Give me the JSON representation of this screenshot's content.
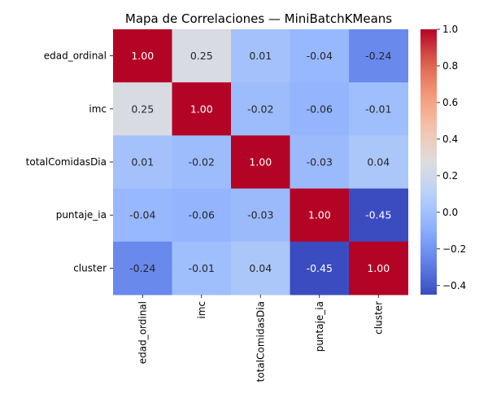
{
  "chart_data": {
    "type": "heatmap",
    "title": "Mapa de Correlaciones — MiniBatchKMeans",
    "rows": [
      "edad_ordinal",
      "imc",
      "totalComidasDia",
      "puntaje_ia",
      "cluster"
    ],
    "columns": [
      "edad_ordinal",
      "imc",
      "totalComidasDia",
      "puntaje_ia",
      "cluster"
    ],
    "values": [
      [
        1.0,
        0.25,
        0.01,
        -0.04,
        -0.24
      ],
      [
        0.25,
        1.0,
        -0.02,
        -0.06,
        -0.01
      ],
      [
        0.01,
        -0.02,
        1.0,
        -0.03,
        0.04
      ],
      [
        -0.04,
        -0.06,
        -0.03,
        1.0,
        -0.45
      ],
      [
        -0.24,
        -0.01,
        0.04,
        -0.45,
        1.0
      ]
    ],
    "labels": [
      [
        "1.00",
        "0.25",
        "0.01",
        "-0.04",
        "-0.24"
      ],
      [
        "0.25",
        "1.00",
        "-0.02",
        "-0.06",
        "-0.01"
      ],
      [
        "0.01",
        "-0.02",
        "1.00",
        "-0.03",
        "0.04"
      ],
      [
        "-0.04",
        "-0.06",
        "-0.03",
        "1.00",
        "-0.45"
      ],
      [
        "-0.24",
        "-0.01",
        "0.04",
        "-0.45",
        "1.00"
      ]
    ],
    "colormap": "coolwarm",
    "vmin": -0.45,
    "vmax": 1.0,
    "colorbar_ticks": [
      1.0,
      0.8,
      0.6,
      0.4,
      0.2,
      0.0,
      -0.2,
      -0.4
    ],
    "colorbar_tick_labels": [
      "1.0",
      "0.8",
      "0.6",
      "0.4",
      "0.2",
      "0.0",
      "−0.2",
      "−0.4"
    ]
  }
}
